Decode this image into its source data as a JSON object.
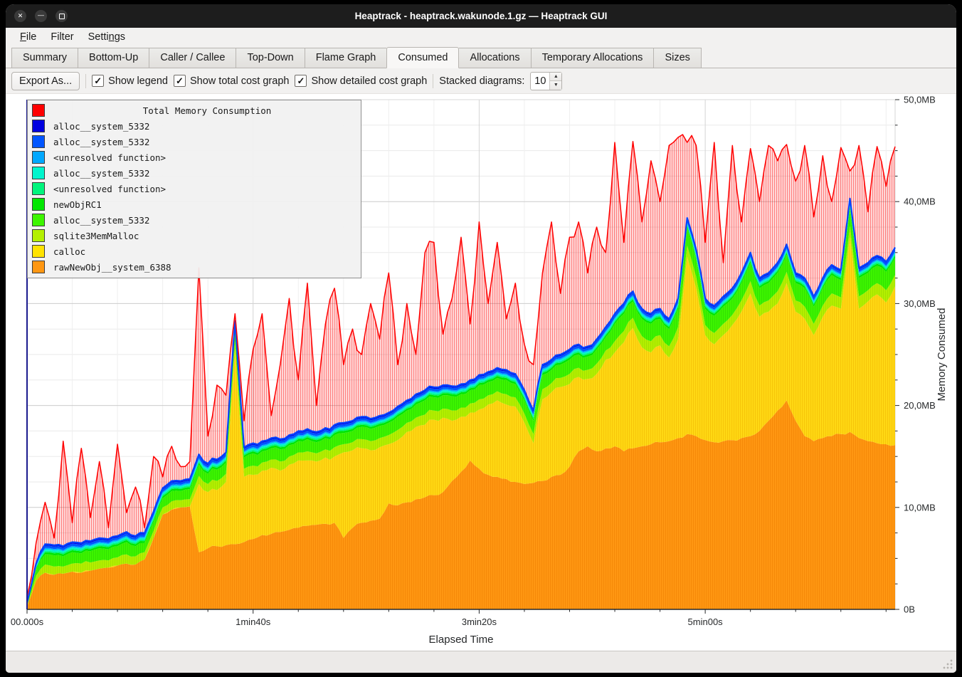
{
  "window": {
    "title": "Heaptrack - heaptrack.wakunode.1.gz — Heaptrack GUI",
    "controls": [
      {
        "name": "close",
        "glyph": "✕"
      },
      {
        "name": "minimize",
        "glyph": "—"
      },
      {
        "name": "maximize",
        "glyph": ""
      }
    ]
  },
  "menubar": {
    "file": {
      "pre": "",
      "u": "F",
      "post": "ile"
    },
    "filter": {
      "pre": "Filter",
      "u": "",
      "post": ""
    },
    "settings": {
      "pre": "Setti",
      "u": "n",
      "post": "gs"
    }
  },
  "tabs": {
    "items": [
      "Summary",
      "Bottom-Up",
      "Caller / Callee",
      "Top-Down",
      "Flame Graph",
      "Consumed",
      "Allocations",
      "Temporary Allocations",
      "Sizes"
    ],
    "active": "Consumed"
  },
  "toolbar": {
    "export_label": "Export As...",
    "checkboxes": [
      {
        "label": "Show legend",
        "checked": true
      },
      {
        "label": "Show total cost graph",
        "checked": true
      },
      {
        "label": "Show detailed cost graph",
        "checked": true
      }
    ],
    "stacked_label": "Stacked diagrams:",
    "stacked_value": "10"
  },
  "chart_data": {
    "type": "area",
    "xlabel": "Elapsed Time",
    "ylabel": "Memory Consumed",
    "xlim_s": [
      0,
      384
    ],
    "ylim_mb": [
      0,
      50
    ],
    "x_major_ticks": [
      {
        "t": 0,
        "label": "00.000s"
      },
      {
        "t": 100,
        "label": "1min40s"
      },
      {
        "t": 200,
        "label": "3min20s"
      },
      {
        "t": 300,
        "label": "5min00s"
      }
    ],
    "x_minor_step_s": 20,
    "y_major_ticks": [
      {
        "v": 0,
        "label": "0B"
      },
      {
        "v": 10,
        "label": "10,0MB"
      },
      {
        "v": 20,
        "label": "20,0MB"
      },
      {
        "v": 30,
        "label": "30,0MB"
      },
      {
        "v": 40,
        "label": "40,0MB"
      },
      {
        "v": 50,
        "label": "50,0MB"
      }
    ],
    "y_minor_step_mb": 2.5,
    "grid": true,
    "legend_position": "top-left",
    "legend": {
      "title": {
        "label": "Total Memory Consumption",
        "color": "#ff0000"
      },
      "entries": [
        {
          "label": "alloc__system_5332",
          "color": "#0000e0"
        },
        {
          "label": "alloc__system_5332",
          "color": "#0055ff"
        },
        {
          "label": "<unresolved function>",
          "color": "#00a8ff"
        },
        {
          "label": "alloc__system_5332",
          "color": "#00f5cd"
        },
        {
          "label": "<unresolved function>",
          "color": "#00f57d"
        },
        {
          "label": "newObjRC1",
          "color": "#00e600"
        },
        {
          "label": "alloc__system_5332",
          "color": "#3df500"
        },
        {
          "label": "sqlite3MemMalloc",
          "color": "#b4f000"
        },
        {
          "label": "calloc",
          "color": "#ffe300"
        },
        {
          "label": "rawNewObj__system_6388",
          "color": "#ff9712"
        }
      ]
    },
    "t_step_s": 4,
    "series": [
      {
        "name": "rawNewObj__system_6388",
        "color": "#ff9712",
        "stripe": "#ef7d00",
        "values": [
          0.3,
          2.8,
          3.6,
          3.4,
          3.5,
          3.7,
          3.6,
          3.8,
          4.0,
          4.1,
          4.3,
          4.5,
          4.4,
          4.9,
          7.0,
          9.3,
          9.8,
          10.0,
          10.1,
          5.6,
          6.0,
          6.2,
          6.3,
          6.4,
          6.6,
          6.9,
          7.3,
          7.4,
          7.6,
          7.8,
          8.0,
          8.2,
          8.3,
          8.4,
          8.5,
          7.0,
          8.0,
          8.5,
          8.7,
          8.9,
          10.4,
          10.2,
          10.5,
          10.8,
          11.0,
          11.2,
          11.5,
          12.6,
          13.5,
          14.6,
          13.8,
          13.2,
          13.0,
          12.8,
          12.5,
          12.3,
          12.4,
          12.6,
          13.0,
          13.2,
          14.0,
          15.5,
          16.0,
          15.5,
          15.8,
          16.0,
          15.5,
          15.8,
          16.0,
          16.2,
          16.4,
          16.5,
          16.8,
          17.2,
          17.0,
          16.6,
          16.4,
          16.5,
          16.6,
          16.8,
          17.0,
          17.5,
          18.5,
          19.5,
          20.5,
          18.5,
          17.0,
          16.5,
          16.8,
          17.0,
          17.2,
          17.4,
          16.8,
          16.5,
          16.3,
          16.2,
          16.1
        ]
      },
      {
        "name": "calloc",
        "color": "#ffd914",
        "stripe": "#f0b400",
        "values": [
          0,
          0,
          0,
          0,
          0,
          0,
          0,
          0,
          0,
          0,
          0,
          0,
          0,
          0,
          0,
          0,
          0,
          0,
          0,
          6.7,
          5.5,
          5.5,
          6.2,
          19.1,
          6.4,
          6.3,
          6.3,
          6.5,
          6.0,
          6.4,
          6.6,
          6.4,
          6.2,
          6.5,
          6.5,
          8.4,
          7.6,
          7.3,
          6.9,
          7.0,
          5.8,
          6.4,
          6.9,
          7.1,
          7.1,
          7.4,
          7.3,
          5.9,
          5.4,
          4.7,
          5.8,
          6.9,
          7.5,
          7.3,
          7.4,
          6.0,
          3.9,
          8.0,
          8.3,
          8.6,
          8.1,
          7.3,
          6.6,
          7.6,
          8.7,
          9.2,
          10.7,
          11.8,
          9.7,
          9.0,
          9.5,
          8.2,
          9.7,
          17.4,
          14.5,
          10.3,
          9.6,
          10.4,
          11.3,
          12.4,
          14.0,
          11.2,
          10.7,
          10.5,
          11.5,
          10.7,
          11.5,
          10.4,
          11.9,
          12.8,
          12.3,
          19.1,
          12.7,
          13.7,
          14.6,
          13.9,
          15.6
        ]
      },
      {
        "name": "sqlite3MemMalloc",
        "color": "#b4f000",
        "stripe": "#96d400",
        "values": [
          0.1,
          0.5,
          0.8,
          0.8,
          0.7,
          0.8,
          0.9,
          0.8,
          0.8,
          0.7,
          0.8,
          0.9,
          0.8,
          0.7,
          0.7,
          0.7,
          0.8,
          0.7,
          0.7,
          0.8,
          0.8,
          0.9,
          0.8,
          0.8,
          0.8,
          0.9,
          0.8,
          0.8,
          0.9,
          0.8,
          0.8,
          0.9,
          0.8,
          0.8,
          0.9,
          0.8,
          0.8,
          0.9,
          0.9,
          0.9,
          0.9,
          1.0,
          0.9,
          0.9,
          1.0,
          0.9,
          0.9,
          1.0,
          0.9,
          0.9,
          1.0,
          0.9,
          0.9,
          1.0,
          0.9,
          0.9,
          0.9,
          1.0,
          0.9,
          0.9,
          1.0,
          0.9,
          0.9,
          1.0,
          0.9,
          1.1,
          1.1,
          1.0,
          1.1,
          1.1,
          1.0,
          1.1,
          1.2,
          1.1,
          1.1,
          1.0,
          1.1,
          1.1,
          1.0,
          1.1,
          1.2,
          1.1,
          1.1,
          1.2,
          1.1,
          1.1,
          1.2,
          1.1,
          1.1,
          1.2,
          1.1,
          1.1,
          1.2,
          1.1,
          1.1,
          1.2,
          1.1
        ]
      },
      {
        "name": "alloc__system_5332",
        "color": "#3df500",
        "stripe": "#28d400",
        "values": [
          0.1,
          0.6,
          1.0,
          1.1,
          1.0,
          1.1,
          1.0,
          1.1,
          1.2,
          1.1,
          1.1,
          1.2,
          1.0,
          0.9,
          0.9,
          0.9,
          1.0,
          0.9,
          1.0,
          1.1,
          1.0,
          1.1,
          1.1,
          1.0,
          1.1,
          1.2,
          1.1,
          1.1,
          1.2,
          1.1,
          1.1,
          1.2,
          1.1,
          1.1,
          1.2,
          1.1,
          1.1,
          1.2,
          1.2,
          1.2,
          1.2,
          1.3,
          1.2,
          1.3,
          1.4,
          1.3,
          1.3,
          1.4,
          1.3,
          1.3,
          1.4,
          1.3,
          1.3,
          1.4,
          1.3,
          1.3,
          1.3,
          1.4,
          1.3,
          1.3,
          1.4,
          1.3,
          1.3,
          1.4,
          1.3,
          1.7,
          1.7,
          1.6,
          1.7,
          1.7,
          1.6,
          1.7,
          1.8,
          1.7,
          1.7,
          1.6,
          1.7,
          1.7,
          1.6,
          1.7,
          1.8,
          1.7,
          1.7,
          1.8,
          1.7,
          1.7,
          1.8,
          1.7,
          1.7,
          1.8,
          1.7,
          1.7,
          1.8,
          1.7,
          1.7,
          1.8,
          1.7
        ]
      },
      {
        "name": "newObjRC1",
        "color": "#00e600",
        "const_mb": 0.2
      },
      {
        "name": "<unresolved function>",
        "color": "#00f57d",
        "const_mb": 0.15
      },
      {
        "name": "alloc__system_5332",
        "color": "#00f5cd",
        "const_mb": 0.15
      },
      {
        "name": "<unresolved function>",
        "color": "#00a8ff",
        "const_mb": 0.12
      },
      {
        "name": "alloc__system_5332",
        "color": "#0055ff",
        "const_mb": 0.23
      },
      {
        "name": "alloc__system_5332",
        "color": "#0000e0",
        "const_mb": 0.15
      }
    ],
    "total": {
      "name": "Total Memory Consumption",
      "color": "#ff0000",
      "values": [
        1.2,
        6.5,
        10.5,
        7.0,
        16.5,
        8.5,
        15.8,
        9.0,
        14.5,
        8.0,
        16.2,
        9.5,
        12.0,
        8.0,
        15.0,
        13.0,
        16.0,
        14.0,
        14.5,
        33.5,
        17.0,
        22.0,
        21.0,
        29.0,
        18.5,
        25.5,
        29.0,
        19.0,
        24.0,
        30.5,
        22.5,
        32.0,
        20.0,
        28.0,
        31.5,
        24.0,
        27.5,
        25.0,
        30.0,
        26.5,
        33.0,
        24.0,
        30.0,
        25.0,
        35.0,
        36.0,
        27.0,
        30.5,
        36.5,
        28.0,
        38.0,
        30.0,
        36.0,
        28.5,
        32.0,
        26.0,
        24.0,
        33.0,
        38.0,
        31.0,
        36.5,
        38.0,
        33.0,
        37.5,
        35.0,
        45.8,
        36.0,
        45.9,
        38.0,
        44.0,
        40.0,
        45.5,
        46.3,
        45.8,
        45.5,
        36.0,
        45.8,
        34.0,
        45.5,
        38.0,
        45.2,
        40.0,
        45.5,
        44.0,
        45.6,
        42.0,
        45.5,
        38.5,
        44.5,
        40.0,
        45.3,
        43.0,
        45.5,
        39.0,
        45.4,
        41.5,
        45.4
      ]
    },
    "stack_top_line_color": "#0543ff",
    "axis_colors": {
      "left": "#1b1b8e",
      "bottom": "#26282a"
    }
  },
  "statusbar": {}
}
